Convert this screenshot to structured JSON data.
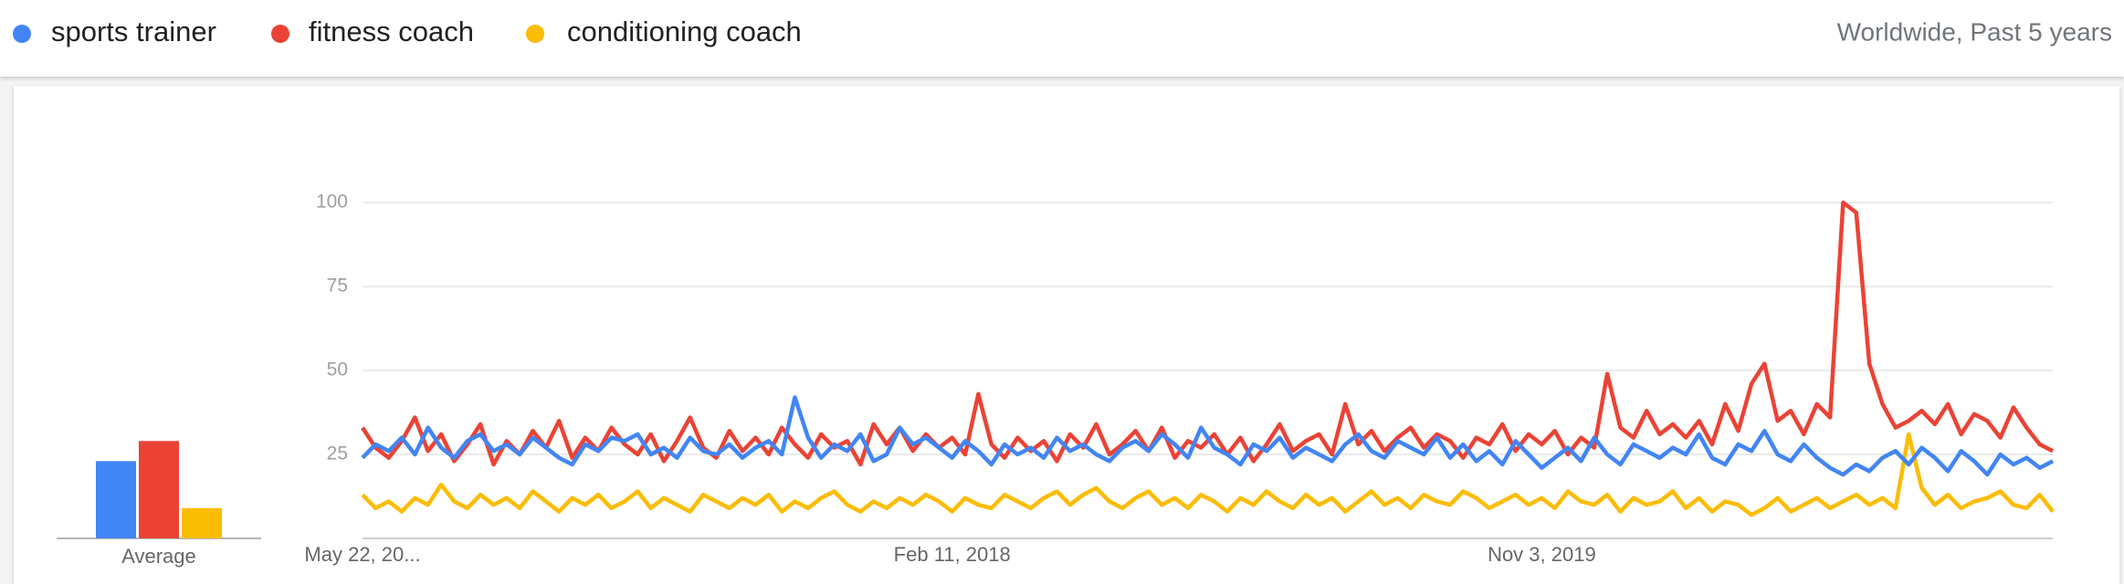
{
  "region_period": "Worldwide, Past 5 years",
  "chart_data": [
    {
      "type": "bar",
      "xlabel": "Average",
      "values": [
        23,
        29,
        9
      ]
    },
    {
      "type": "line",
      "ylim": [
        0,
        100
      ],
      "yticks": [
        25,
        50,
        75,
        100
      ],
      "grid": true,
      "categories": [
        "May 22, 20...",
        null,
        null,
        null,
        null,
        null,
        null,
        null,
        null,
        null,
        null,
        null,
        null,
        null,
        null,
        null,
        null,
        null,
        null,
        null,
        null,
        null,
        null,
        null,
        null,
        null,
        null,
        null,
        null,
        null,
        null,
        null,
        null,
        null,
        null,
        null,
        null,
        null,
        null,
        null,
        null,
        null,
        null,
        null,
        null,
        "Feb 11, 2018",
        null,
        null,
        null,
        null,
        null,
        null,
        null,
        null,
        null,
        null,
        null,
        null,
        null,
        null,
        null,
        null,
        null,
        null,
        null,
        null,
        null,
        null,
        null,
        null,
        null,
        null,
        null,
        null,
        null,
        null,
        null,
        null,
        null,
        null,
        null,
        null,
        null,
        null,
        null,
        null,
        null,
        null,
        null,
        null,
        "Nov 3, 2019",
        null,
        null,
        null,
        null,
        null,
        null,
        null,
        null,
        null,
        null,
        null,
        null,
        null,
        null,
        null,
        null,
        null,
        null,
        null,
        null,
        null,
        null,
        null,
        null,
        null,
        null,
        null,
        null,
        null,
        null,
        null,
        null,
        null,
        null,
        null,
        null,
        null,
        null,
        null
      ],
      "series": [
        {
          "name": "sports trainer",
          "color": "#4285f4",
          "values": [
            24,
            28,
            26,
            30,
            25,
            33,
            27,
            24,
            29,
            31,
            26,
            28,
            25,
            30,
            27,
            24,
            22,
            28,
            26,
            30,
            29,
            31,
            25,
            27,
            24,
            30,
            26,
            25,
            28,
            24,
            27,
            29,
            25,
            42,
            30,
            24,
            28,
            26,
            31,
            23,
            25,
            33,
            28,
            30,
            27,
            24,
            29,
            26,
            22,
            28,
            25,
            27,
            24,
            30,
            26,
            28,
            25,
            23,
            27,
            29,
            26,
            31,
            28,
            24,
            33,
            27,
            25,
            22,
            28,
            26,
            30,
            24,
            27,
            25,
            23,
            28,
            31,
            26,
            24,
            29,
            27,
            25,
            30,
            24,
            28,
            23,
            26,
            22,
            29,
            25,
            21,
            24,
            27,
            23,
            30,
            25,
            22,
            28,
            26,
            24,
            27,
            25,
            31,
            24,
            22,
            28,
            26,
            32,
            25,
            23,
            28,
            24,
            21,
            19,
            22,
            20,
            24,
            26,
            22,
            27,
            24,
            20,
            26,
            23,
            19,
            25,
            22,
            24,
            21,
            23
          ]
        },
        {
          "name": "fitness coach",
          "color": "#ea4335",
          "values": [
            33,
            27,
            24,
            29,
            36,
            26,
            31,
            23,
            28,
            34,
            22,
            29,
            25,
            32,
            27,
            35,
            24,
            30,
            26,
            33,
            28,
            25,
            31,
            23,
            29,
            36,
            27,
            24,
            32,
            26,
            30,
            25,
            33,
            28,
            24,
            31,
            27,
            29,
            22,
            34,
            28,
            33,
            26,
            31,
            27,
            30,
            25,
            43,
            28,
            24,
            30,
            26,
            29,
            23,
            31,
            27,
            34,
            25,
            28,
            32,
            26,
            33,
            24,
            29,
            27,
            31,
            25,
            30,
            23,
            28,
            34,
            26,
            29,
            31,
            25,
            40,
            28,
            32,
            26,
            30,
            33,
            27,
            31,
            29,
            24,
            30,
            28,
            34,
            26,
            31,
            28,
            32,
            25,
            30,
            27,
            49,
            33,
            30,
            38,
            31,
            34,
            30,
            35,
            28,
            40,
            32,
            46,
            52,
            35,
            38,
            31,
            40,
            36,
            100,
            97,
            52,
            40,
            33,
            35,
            38,
            34,
            40,
            31,
            37,
            35,
            30,
            39,
            33,
            28,
            26
          ]
        },
        {
          "name": "conditioning coach",
          "color": "#fbbc04",
          "values": [
            13,
            9,
            11,
            8,
            12,
            10,
            16,
            11,
            9,
            13,
            10,
            12,
            9,
            14,
            11,
            8,
            12,
            10,
            13,
            9,
            11,
            14,
            9,
            12,
            10,
            8,
            13,
            11,
            9,
            12,
            10,
            13,
            8,
            11,
            9,
            12,
            14,
            10,
            8,
            11,
            9,
            12,
            10,
            13,
            11,
            8,
            12,
            10,
            9,
            13,
            11,
            9,
            12,
            14,
            10,
            13,
            15,
            11,
            9,
            12,
            14,
            10,
            12,
            9,
            13,
            11,
            8,
            12,
            10,
            14,
            11,
            9,
            13,
            10,
            12,
            8,
            11,
            14,
            10,
            12,
            9,
            13,
            11,
            10,
            14,
            12,
            9,
            11,
            13,
            10,
            12,
            9,
            14,
            11,
            10,
            13,
            8,
            12,
            10,
            11,
            14,
            9,
            12,
            8,
            11,
            10,
            7,
            9,
            12,
            8,
            10,
            12,
            9,
            11,
            13,
            10,
            12,
            9,
            31,
            15,
            10,
            13,
            9,
            11,
            12,
            14,
            10,
            9,
            13,
            8
          ]
        }
      ]
    }
  ]
}
